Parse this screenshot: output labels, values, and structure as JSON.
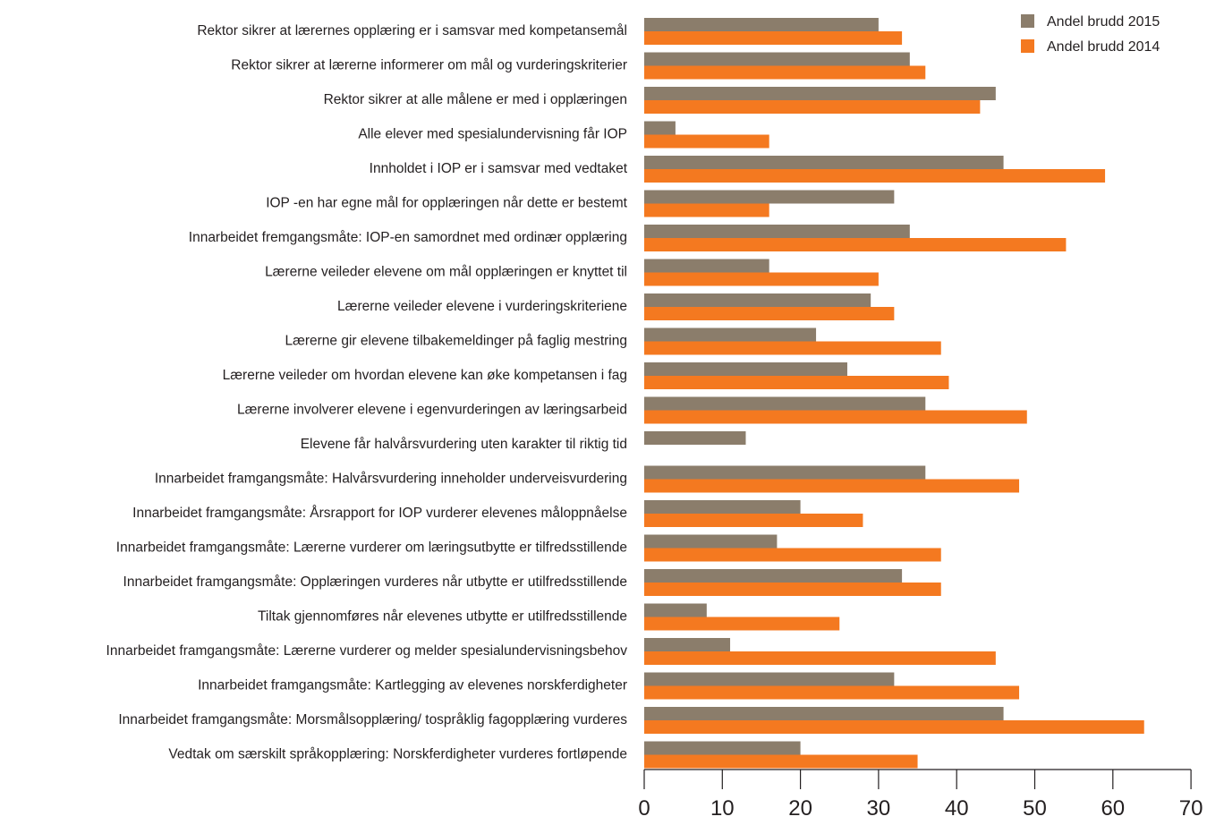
{
  "chart_data": {
    "type": "bar",
    "orientation": "horizontal",
    "categories": [
      "Rektor sikrer at lærernes opplæring er i samsvar med kompetansemål",
      "Rektor sikrer at lærerne informerer om mål og vurderingskriterier",
      "Rektor sikrer at alle målene er med i opplæringen",
      "Alle elever med spesialundervisning får IOP",
      "Innholdet i IOP er i samsvar med vedtaket",
      "IOP -en har egne mål for opplæringen når dette er bestemt",
      "Innarbeidet fremgangsmåte: IOP-en samordnet med ordinær opplæring",
      "Lærerne veileder elevene om mål opplæringen er knyttet til",
      "Lærerne veileder elevene i vurderingskriteriene",
      "Lærerne gir elevene tilbakemeldinger på faglig mestring",
      "Lærerne veileder om hvordan elevene kan øke kompetansen i fag",
      "Lærerne involverer elevene i egenvurderingen av læringsarbeid",
      "Elevene får halvårsvurdering uten karakter til riktig tid",
      "Innarbeidet framgangsmåte: Halvårsvurdering inneholder underveisvurdering",
      "Innarbeidet framgangsmåte: Årsrapport for IOP vurderer elevenes måloppnåelse",
      "Innarbeidet framgangsmåte: Lærerne vurderer om læringsutbytte er tilfredsstillende",
      "Innarbeidet framgangsmåte: Opplæringen vurderes når utbytte er utilfredsstillende",
      "Tiltak gjennomføres når elevenes utbytte er utilfredsstillende",
      "Innarbeidet framgangsmåte: Lærerne vurderer og melder spesialundervisningsbehov",
      "Innarbeidet framgangsmåte: Kartlegging av elevenes norskferdigheter",
      "Innarbeidet framgangsmåte: Morsmålsopplæring/ tospråklig fagopplæring vurderes",
      "Vedtak om særskilt språkopplæring: Norskferdigheter vurderes fortløpende"
    ],
    "series": [
      {
        "name": "Andel brudd 2015",
        "color": "#8b7d6b",
        "values": [
          30,
          34,
          45,
          4,
          46,
          32,
          34,
          16,
          29,
          22,
          26,
          36,
          13,
          36,
          20,
          17,
          33,
          8,
          11,
          32,
          46,
          20
        ]
      },
      {
        "name": "Andel brudd 2014",
        "color": "#f47920",
        "values": [
          33,
          36,
          43,
          16,
          59,
          16,
          54,
          30,
          32,
          38,
          39,
          49,
          null,
          48,
          28,
          38,
          38,
          25,
          45,
          48,
          64,
          35
        ]
      }
    ],
    "xlim": [
      0,
      70
    ],
    "ticks": [
      0,
      10,
      20,
      30,
      40,
      50,
      60,
      70
    ],
    "title": "",
    "xlabel": "",
    "ylabel": "",
    "grid": false,
    "legend_position": "top-right"
  }
}
